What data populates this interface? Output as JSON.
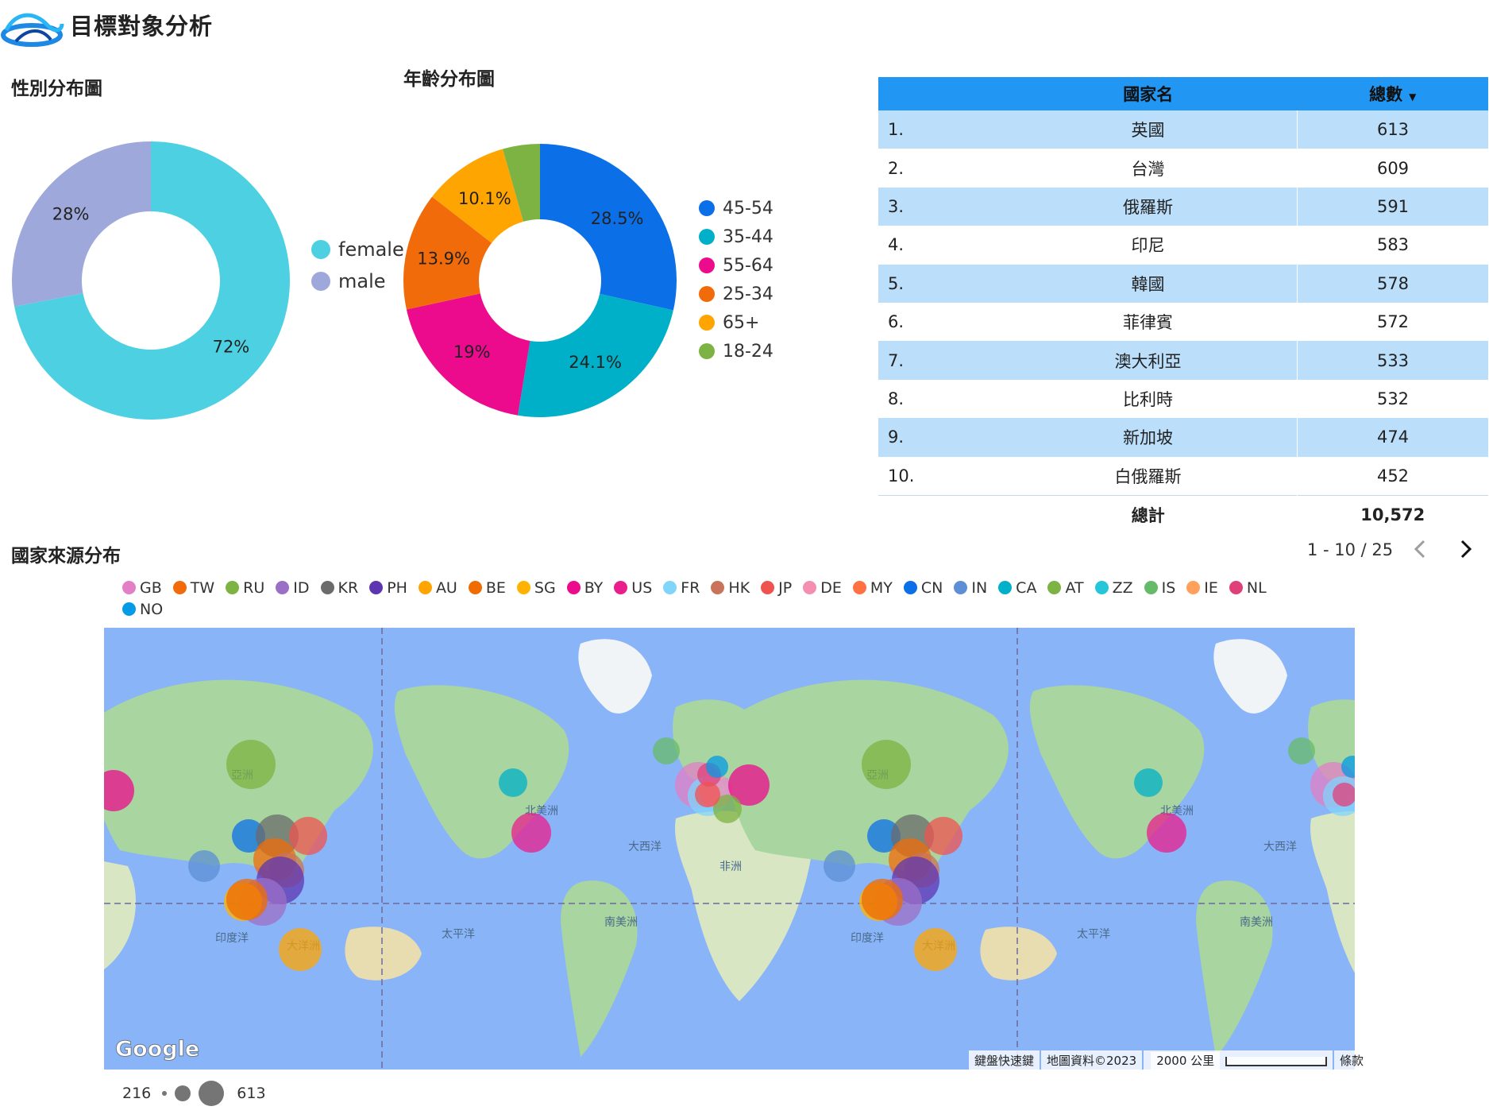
{
  "header": {
    "title": "目標對象分析"
  },
  "gender": {
    "title": "性別分布圖",
    "chart_data": {
      "type": "pie",
      "categories": [
        "female",
        "male"
      ],
      "values": [
        72,
        28
      ],
      "data_labels": [
        "72%",
        "28%"
      ],
      "colors": [
        "#4dd0e1",
        "#9fa8da"
      ],
      "legend_position": "right"
    },
    "legend": [
      {
        "label": "female",
        "color": "#4dd0e1"
      },
      {
        "label": "male",
        "color": "#9fa8da"
      }
    ]
  },
  "age": {
    "title": "年齡分布圖",
    "chart_data": {
      "type": "pie",
      "categories": [
        "45-54",
        "35-44",
        "55-64",
        "25-34",
        "65+",
        "18-24"
      ],
      "values": [
        28.5,
        24.1,
        19,
        13.9,
        10.1,
        4.4
      ],
      "data_labels": [
        "28.5%",
        "24.1%",
        "19%",
        "13.9%",
        "10.1%",
        ""
      ],
      "colors": [
        "#0b6fe8",
        "#00b0c8",
        "#ec0b8c",
        "#f26b0a",
        "#ffa502",
        "#7cb342"
      ],
      "legend_position": "right"
    },
    "legend": [
      {
        "label": "45-54",
        "color": "#0b6fe8"
      },
      {
        "label": "35-44",
        "color": "#00b0c8"
      },
      {
        "label": "55-64",
        "color": "#ec0b8c"
      },
      {
        "label": "25-34",
        "color": "#f26b0a"
      },
      {
        "label": "65+",
        "color": "#ffa502"
      },
      {
        "label": "18-24",
        "color": "#7cb342"
      }
    ]
  },
  "country_table": {
    "headers": {
      "name": "國家名",
      "count": "總數"
    },
    "sort_icon": "sort-desc-icon",
    "rows": [
      {
        "rank": "1.",
        "name": "英國",
        "count": "613"
      },
      {
        "rank": "2.",
        "name": "台灣",
        "count": "609"
      },
      {
        "rank": "3.",
        "name": "俄羅斯",
        "count": "591"
      },
      {
        "rank": "4.",
        "name": "印尼",
        "count": "583"
      },
      {
        "rank": "5.",
        "name": "韓國",
        "count": "578"
      },
      {
        "rank": "6.",
        "name": "菲律賓",
        "count": "572"
      },
      {
        "rank": "7.",
        "name": "澳大利亞",
        "count": "533"
      },
      {
        "rank": "8.",
        "name": "比利時",
        "count": "532"
      },
      {
        "rank": "9.",
        "name": "新加坡",
        "count": "474"
      },
      {
        "rank": "10.",
        "name": "白俄羅斯",
        "count": "452"
      }
    ],
    "total_label": "總計",
    "total_value": "10,572",
    "pager": "1 - 10 / 25"
  },
  "country_map": {
    "title": "國家來源分布",
    "legend": [
      {
        "code": "GB",
        "color": "#e27fc6"
      },
      {
        "code": "TW",
        "color": "#f26b0a"
      },
      {
        "code": "RU",
        "color": "#7cb342"
      },
      {
        "code": "ID",
        "color": "#9c6fc6"
      },
      {
        "code": "KR",
        "color": "#6b6b6b"
      },
      {
        "code": "PH",
        "color": "#5e35b1"
      },
      {
        "code": "AU",
        "color": "#ffa502"
      },
      {
        "code": "BE",
        "color": "#ef6c00"
      },
      {
        "code": "SG",
        "color": "#ffb300"
      },
      {
        "code": "BY",
        "color": "#ec0b8c"
      },
      {
        "code": "US",
        "color": "#e91e8c"
      },
      {
        "code": "FR",
        "color": "#81d4fa"
      },
      {
        "code": "HK",
        "color": "#c9735a"
      },
      {
        "code": "JP",
        "color": "#ef5350"
      },
      {
        "code": "DE",
        "color": "#f48fb1"
      },
      {
        "code": "MY",
        "color": "#ff7043"
      },
      {
        "code": "CN",
        "color": "#0b6fe8"
      },
      {
        "code": "IN",
        "color": "#5c8fd6"
      },
      {
        "code": "CA",
        "color": "#00b0c8"
      },
      {
        "code": "AT",
        "color": "#7cb342"
      },
      {
        "code": "ZZ",
        "color": "#26c6da"
      },
      {
        "code": "IS",
        "color": "#66bb6a"
      },
      {
        "code": "IE",
        "color": "#ffa15a"
      },
      {
        "code": "NL",
        "color": "#e0407a"
      },
      {
        "code": "NO",
        "color": "#039be5"
      }
    ],
    "labels": {
      "asia": "亞洲",
      "north_america": "北美洲",
      "atlantic": "大西洋",
      "africa": "非洲",
      "south_america": "南美洲",
      "pacific": "太平洋",
      "indian_ocean": "印度洋",
      "oceania": "大洋洲"
    },
    "footer": {
      "shortcuts": "鍵盤快速鍵",
      "map_data": "地圖資料©2023",
      "scale": "2000 公里",
      "terms": "條款"
    },
    "google_logo": "Google",
    "size_legend": {
      "min": "216",
      "max": "613"
    }
  }
}
